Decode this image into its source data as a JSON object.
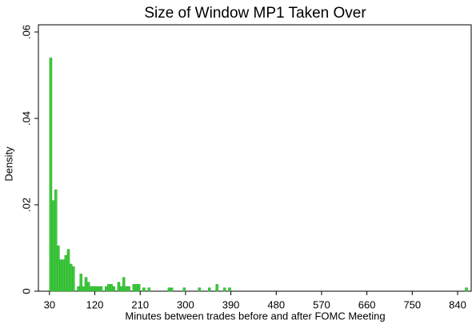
{
  "chart_data": {
    "type": "histogram",
    "title": "Size of Window MP1 Taken Over",
    "x_label": "Minutes between trades before and after FOMC Meeting",
    "y_label": "Density",
    "color": "#3cc83c",
    "bins": [
      30,
      35,
      40,
      45,
      50,
      55,
      60,
      65,
      70,
      75,
      80,
      85,
      90,
      95,
      100,
      105,
      110,
      115,
      120,
      125,
      130,
      135,
      140,
      145,
      150,
      155,
      160,
      165,
      170,
      175,
      180,
      185,
      190,
      195,
      200,
      205,
      210,
      215,
      220,
      225,
      230,
      235,
      240,
      245,
      250,
      255,
      260,
      265,
      270,
      275,
      280,
      285,
      290,
      295,
      300,
      305,
      310,
      315,
      320,
      325,
      330,
      335,
      340,
      345,
      350,
      355,
      360,
      365,
      370,
      375,
      380,
      385,
      390,
      395,
      400,
      405,
      410,
      415,
      420,
      425,
      430,
      435,
      440,
      445,
      450,
      455,
      460,
      465,
      470,
      475,
      480,
      485,
      490,
      495,
      500,
      505,
      510,
      515,
      520,
      525,
      530,
      535,
      540,
      545,
      550,
      555,
      560,
      565,
      570,
      575,
      580,
      585,
      590,
      595,
      600,
      605,
      610,
      615,
      620,
      625,
      630,
      635,
      640,
      645,
      650,
      655,
      660,
      665,
      670,
      675,
      680,
      685,
      690,
      695,
      700,
      705,
      710,
      715,
      720,
      725,
      730,
      735,
      740,
      745,
      750,
      755,
      760,
      765,
      770,
      775,
      780,
      785,
      790,
      795,
      800,
      805,
      810,
      815,
      820,
      825,
      830,
      835,
      840,
      845,
      850,
      855,
      860
    ],
    "values": [
      0.054,
      0.021,
      0.0235,
      0.0105,
      0.0073,
      0.0073,
      0.0083,
      0.0097,
      0.0063,
      0.0057,
      0,
      0.0011,
      0.004,
      0.0011,
      0.0032,
      0.0021,
      0.0011,
      0.0011,
      0.0011,
      0.0011,
      0.0011,
      0,
      0.0011,
      0.0016,
      0.0016,
      0.0011,
      0,
      0.0021,
      0.0011,
      0.0032,
      0.0011,
      0.0011,
      0,
      0.0016,
      0.0016,
      0.0016,
      0,
      0.0008,
      0,
      0.0008,
      0,
      0,
      0,
      0,
      0,
      0,
      0,
      0.0008,
      0.0008,
      0,
      0,
      0,
      0,
      0.0008,
      0,
      0,
      0,
      0,
      0,
      0.0008,
      0,
      0,
      0,
      0.0008,
      0,
      0,
      0.0016,
      0,
      0,
      0.0008,
      0,
      0.0008,
      0,
      0,
      0,
      0,
      0,
      0,
      0,
      0,
      0,
      0,
      0,
      0,
      0,
      0,
      0,
      0,
      0,
      0,
      0,
      0,
      0,
      0,
      0,
      0,
      0,
      0,
      0,
      0,
      0,
      0,
      0,
      0,
      0,
      0,
      0,
      0,
      0,
      0,
      0,
      0,
      0,
      0,
      0,
      0,
      0,
      0,
      0,
      0,
      0,
      0,
      0,
      0,
      0,
      0,
      0,
      0,
      0,
      0,
      0,
      0,
      0,
      0,
      0,
      0,
      0,
      0,
      0,
      0,
      0,
      0,
      0,
      0,
      0,
      0,
      0,
      0,
      0,
      0,
      0,
      0,
      0,
      0,
      0,
      0,
      0,
      0,
      0,
      0,
      0,
      0,
      0,
      0,
      0,
      0.0008
    ],
    "xlim": [
      8,
      867
    ],
    "xticks": [
      30,
      120,
      210,
      300,
      390,
      480,
      570,
      660,
      750,
      840
    ],
    "ylim": [
      0,
      0.06
    ],
    "yticks": [
      0,
      {
        "value": 0.02,
        "label": ".02"
      },
      {
        "value": 0.04,
        "label": ".04"
      },
      {
        "value": 0.06,
        "label": ".06"
      }
    ]
  }
}
